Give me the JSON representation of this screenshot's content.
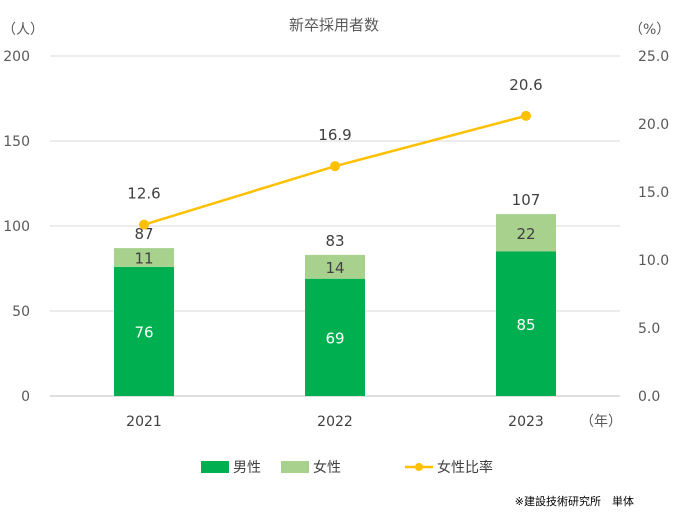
{
  "chart_data": {
    "type": "bar",
    "title": "新卒採用者数",
    "categories": [
      "2021",
      "2022",
      "2023"
    ],
    "stacked": true,
    "series": [
      {
        "name": "男性",
        "type": "bar",
        "axis": "left",
        "color": "#00B050",
        "values": [
          76,
          69,
          85
        ]
      },
      {
        "name": "女性",
        "type": "bar",
        "axis": "left",
        "color": "#A9D18E",
        "values": [
          11,
          14,
          22
        ]
      },
      {
        "name": "女性比率",
        "type": "line",
        "axis": "right",
        "color": "#FFC000",
        "values": [
          12.6,
          16.9,
          20.6
        ]
      }
    ],
    "totals": [
      87,
      83,
      107
    ],
    "ylabel": "（人）",
    "y2label": "（%）",
    "xlabel": "（年）",
    "ylim": [
      0,
      200
    ],
    "yticks": [
      "0",
      "50",
      "100",
      "150",
      "200"
    ],
    "y2lim": [
      0,
      25
    ],
    "y2ticks": [
      "0.0",
      "5.0",
      "10.0",
      "15.0",
      "20.0",
      "25.0"
    ],
    "grid": true,
    "legend_position": "bottom",
    "note": "※建設技術研究所　単体"
  }
}
